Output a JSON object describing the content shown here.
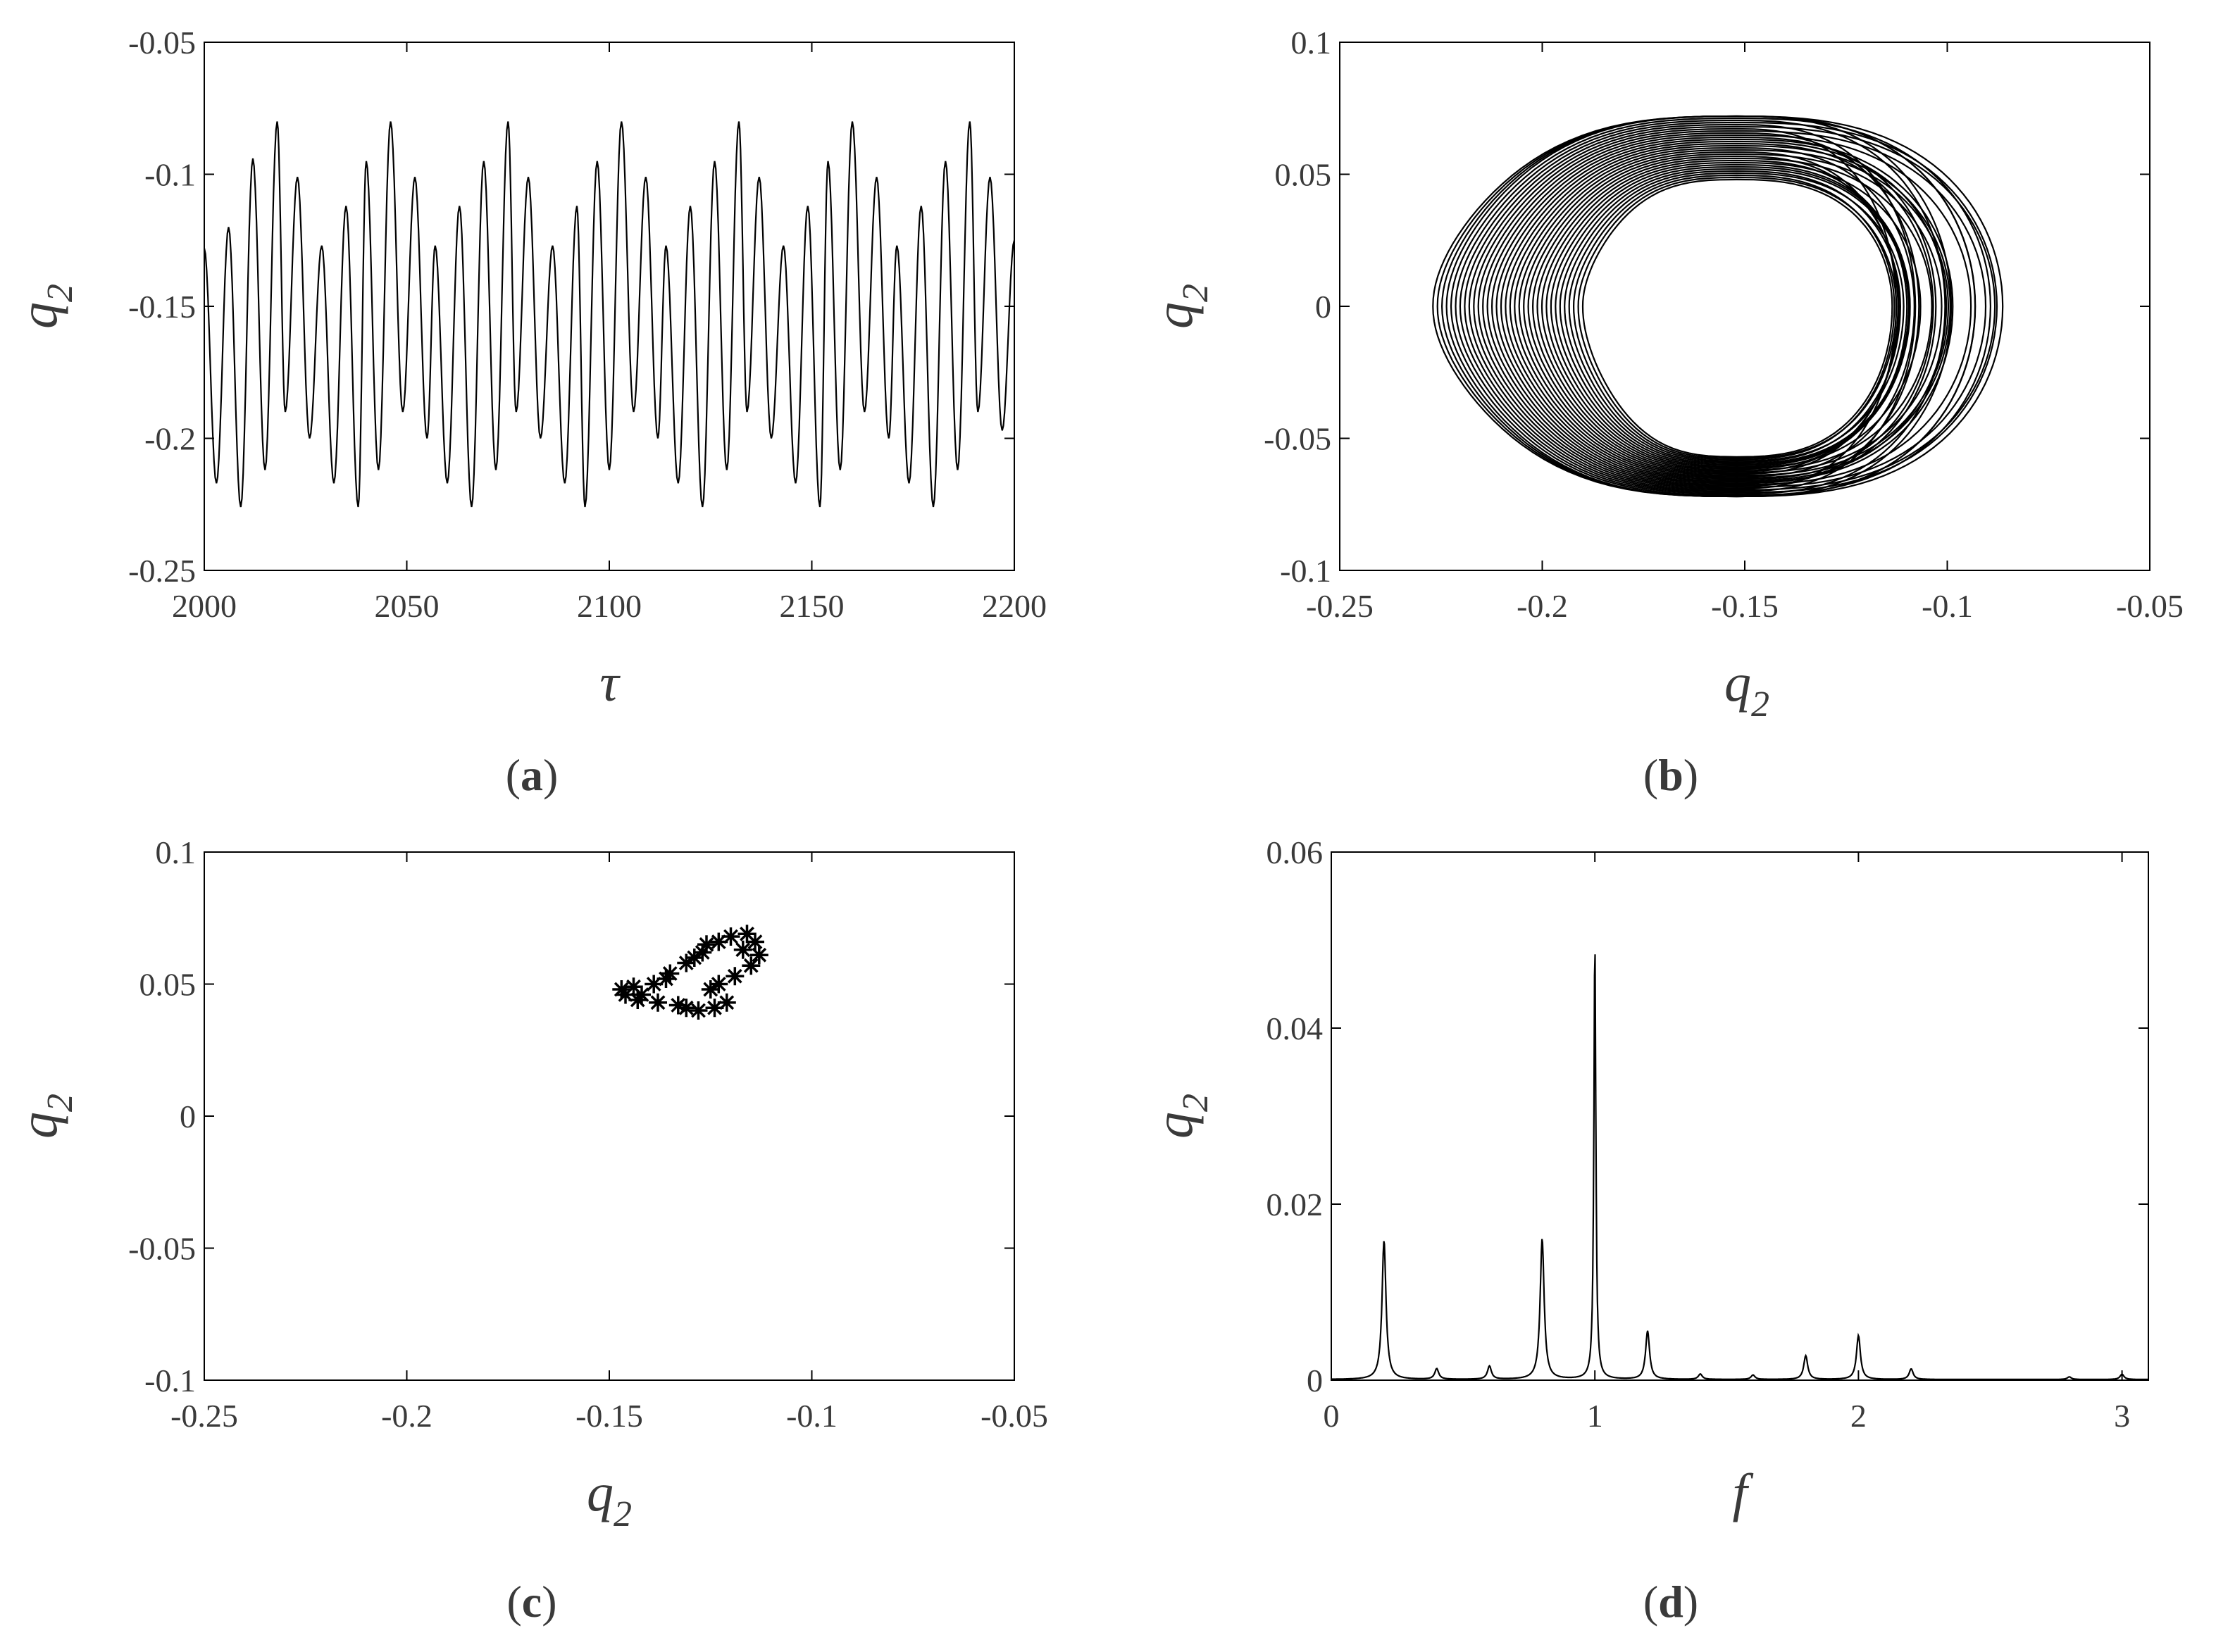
{
  "figure": {
    "captions": [
      "(a)",
      "(b)",
      "(c)",
      "(d)"
    ],
    "panels": [
      {
        "id": "a",
        "caption": "(a)",
        "caption_letter": "a",
        "xlabel": "τ",
        "ylabel_base": "q",
        "ylabel_sub": "2"
      },
      {
        "id": "b",
        "caption": "(b)",
        "caption_letter": "b",
        "xlabel_base": "q",
        "xlabel_sub": "2",
        "ylabel_base": "q",
        "ylabel_sub": "2"
      },
      {
        "id": "c",
        "caption": "(c)",
        "caption_letter": "c",
        "xlabel_base": "q",
        "xlabel_sub": "2",
        "ylabel_base": "q",
        "ylabel_sub": "2"
      },
      {
        "id": "d",
        "caption": "(d)",
        "caption_letter": "d",
        "xlabel": "f",
        "ylabel_base": "q",
        "ylabel_sub": "2"
      }
    ]
  },
  "chart_data": [
    {
      "panel": "a",
      "type": "line",
      "title": "",
      "xlabel": "τ",
      "ylabel": "q2",
      "xlim": [
        2000,
        2200
      ],
      "ylim": [
        -0.25,
        -0.05
      ],
      "xticks": [
        2000,
        2050,
        2100,
        2150,
        2200
      ],
      "xtick_labels": [
        "2000",
        "2050",
        "2100",
        "2150",
        "2200"
      ],
      "yticks": [
        -0.05,
        -0.1,
        -0.15,
        -0.2,
        -0.25
      ],
      "ytick_labels": [
        "-0.05",
        "-0.1",
        "-0.15",
        "-0.2",
        "-0.25"
      ],
      "grid": false,
      "series": [
        {
          "color": "#000000",
          "description_points": {
            "peaks_tau": [
              2006,
              2012,
              2018,
              2023,
              2029,
              2035,
              2040,
              2046,
              2052,
              2057,
              2063,
              2069,
              2075,
              2080,
              2086,
              2092,
              2097,
              2103,
              2109,
              2114,
              2120,
              2126,
              2132,
              2137,
              2143,
              2149,
              2154,
              2160,
              2166,
              2171,
              2177,
              2183,
              2189,
              2194
            ],
            "peaks_q2": [
              -0.12,
              -0.094,
              -0.08,
              -0.101,
              -0.127,
              -0.112,
              -0.095,
              -0.08,
              -0.101,
              -0.127,
              -0.112,
              -0.095,
              -0.08,
              -0.101,
              -0.127,
              -0.112,
              -0.095,
              -0.08,
              -0.101,
              -0.127,
              -0.112,
              -0.095,
              -0.08,
              -0.101,
              -0.127,
              -0.112,
              -0.095,
              -0.08,
              -0.101,
              -0.127,
              -0.112,
              -0.095,
              -0.08,
              -0.101
            ],
            "troughs_tau": [
              2003,
              2009,
              2015,
              2020,
              2026,
              2032,
              2038,
              2043,
              2049,
              2055,
              2060,
              2066,
              2072,
              2077,
              2083,
              2089,
              2094,
              2100,
              2106,
              2112,
              2117,
              2123,
              2129,
              2134,
              2140,
              2146,
              2152,
              2157,
              2163,
              2169,
              2174,
              2180,
              2186,
              2191,
              2197
            ],
            "troughs_q2": [
              -0.217,
              -0.226,
              -0.212,
              -0.19,
              -0.2,
              -0.217,
              -0.226,
              -0.212,
              -0.19,
              -0.2,
              -0.217,
              -0.226,
              -0.212,
              -0.19,
              -0.2,
              -0.217,
              -0.226,
              -0.212,
              -0.19,
              -0.2,
              -0.217,
              -0.226,
              -0.212,
              -0.19,
              -0.2,
              -0.217,
              -0.226,
              -0.212,
              -0.19,
              -0.2,
              -0.217,
              -0.226,
              -0.212,
              -0.19,
              -0.197
            ]
          }
        }
      ]
    },
    {
      "panel": "b",
      "type": "line",
      "title": "",
      "xlabel": "q2",
      "ylabel": "q2",
      "xlim": [
        -0.25,
        -0.05
      ],
      "ylim": [
        -0.1,
        0.1
      ],
      "xticks": [
        -0.25,
        -0.2,
        -0.15,
        -0.1,
        -0.05
      ],
      "xtick_labels": [
        "-0.25",
        "-0.2",
        "-0.15",
        "-0.1",
        "-0.05"
      ],
      "yticks": [
        0.1,
        0.05,
        0,
        -0.05,
        -0.1
      ],
      "ytick_labels": [
        "0.1",
        "0.05",
        "0",
        "-0.05",
        "-0.1"
      ],
      "grid": false,
      "series": [
        {
          "color": "#000000",
          "phase_portrait": {
            "outer_left_q2": -0.227,
            "outer_right_q2": -0.08,
            "outer_max_dq2": 0.072,
            "outer_min_dq2": -0.072,
            "inner_left_q2": -0.19,
            "inner_right_q2": -0.128,
            "inner_max_dq2": 0.048,
            "inner_min_dq2": -0.057,
            "cusp_q2": -0.152
          }
        }
      ]
    },
    {
      "panel": "c",
      "type": "scatter",
      "title": "",
      "xlabel": "q2",
      "ylabel": "q2",
      "xlim": [
        -0.25,
        -0.05
      ],
      "ylim": [
        -0.1,
        0.1
      ],
      "xticks": [
        -0.25,
        -0.2,
        -0.15,
        -0.1,
        -0.05
      ],
      "xtick_labels": [
        "-0.25",
        "-0.2",
        "-0.15",
        "-0.1",
        "-0.05"
      ],
      "yticks": [
        0.1,
        0.05,
        0,
        -0.05,
        -0.1
      ],
      "ytick_labels": [
        "0.1",
        "0.05",
        "0",
        "-0.05",
        "-0.1"
      ],
      "grid": false,
      "marker": "*",
      "points": [
        [
          -0.147,
          0.048
        ],
        [
          -0.142,
          0.046
        ],
        [
          -0.139,
          0.05
        ],
        [
          -0.135,
          0.054
        ],
        [
          -0.131,
          0.058
        ],
        [
          -0.127,
          0.062
        ],
        [
          -0.123,
          0.066
        ],
        [
          -0.12,
          0.068
        ],
        [
          -0.116,
          0.069
        ],
        [
          -0.114,
          0.066
        ],
        [
          -0.113,
          0.061
        ],
        [
          -0.115,
          0.057
        ],
        [
          -0.119,
          0.053
        ],
        [
          -0.123,
          0.05
        ],
        [
          -0.128,
          0.04
        ],
        [
          -0.133,
          0.042
        ],
        [
          -0.138,
          0.043
        ],
        [
          -0.143,
          0.044
        ],
        [
          -0.146,
          0.046
        ],
        [
          -0.121,
          0.043
        ],
        [
          -0.131,
          0.041
        ],
        [
          -0.125,
          0.048
        ],
        [
          -0.117,
          0.063
        ],
        [
          -0.129,
          0.06
        ],
        [
          -0.136,
          0.052
        ],
        [
          -0.144,
          0.049
        ],
        [
          -0.126,
          0.065
        ],
        [
          -0.124,
          0.041
        ]
      ]
    },
    {
      "panel": "d",
      "type": "line",
      "title": "",
      "xlabel": "f",
      "ylabel": "q2",
      "xlim": [
        0,
        3.1
      ],
      "ylim": [
        0,
        0.06
      ],
      "xticks": [
        0,
        1,
        2,
        3
      ],
      "xtick_labels": [
        "0",
        "1",
        "2",
        "3"
      ],
      "yticks": [
        0.06,
        0.04,
        0.02,
        0
      ],
      "ytick_labels": [
        "0.06",
        "0.04",
        "0.02",
        "0"
      ],
      "grid": false,
      "series": [
        {
          "color": "#000000",
          "peaks": [
            {
              "f": 0.2,
              "q2": 0.0158
            },
            {
              "f": 0.4,
              "q2": 0.0012
            },
            {
              "f": 0.6,
              "q2": 0.0015
            },
            {
              "f": 0.8,
              "q2": 0.016
            },
            {
              "f": 1.0,
              "q2": 0.05
            },
            {
              "f": 1.2,
              "q2": 0.0055
            },
            {
              "f": 1.4,
              "q2": 0.0006
            },
            {
              "f": 1.6,
              "q2": 0.0005
            },
            {
              "f": 1.8,
              "q2": 0.0027
            },
            {
              "f": 2.0,
              "q2": 0.005
            },
            {
              "f": 2.2,
              "q2": 0.0012
            },
            {
              "f": 2.8,
              "q2": 0.0003
            },
            {
              "f": 3.0,
              "q2": 0.0006
            }
          ]
        }
      ]
    }
  ]
}
